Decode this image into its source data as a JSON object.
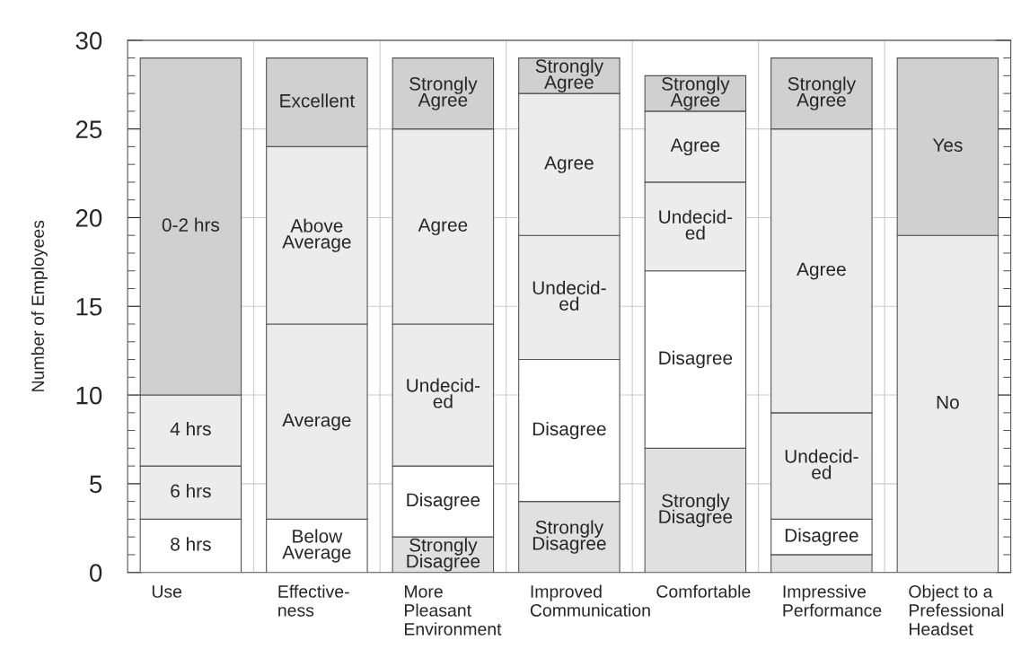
{
  "chart_data": {
    "type": "bar",
    "stacked": true,
    "ylabel": "Number of Employees",
    "categories": [
      "Use",
      "Effective-\nness",
      "More\nPleasant\nEnvironment",
      "Improved\nCommunication",
      "Comfortable",
      "Impressive\nPerformance",
      "Object to a\nPrefessional\nHeadset"
    ],
    "series": [
      {
        "name": "8 hrs",
        "color": "#ffffff",
        "values": [
          3,
          null,
          null,
          null,
          null,
          null,
          null
        ]
      },
      {
        "name": "Below\nAverage",
        "color": "#ffffff",
        "values": [
          null,
          3,
          null,
          null,
          null,
          null,
          null
        ]
      },
      {
        "name": "Strongly\nDisagree",
        "color": "#e0e0e0",
        "values": [
          null,
          null,
          2,
          4,
          7,
          null,
          null
        ]
      },
      {
        "color": "#e0e0e0",
        "values": [
          null,
          null,
          null,
          null,
          null,
          1,
          null
        ]
      },
      {
        "name": "No",
        "color": "#ececec",
        "values": [
          null,
          null,
          null,
          null,
          null,
          null,
          19
        ]
      },
      {
        "name": "6 hrs",
        "color": "#ececec",
        "values": [
          3,
          null,
          null,
          null,
          null,
          null,
          null
        ]
      },
      {
        "name": "Average",
        "color": "#ececec",
        "values": [
          null,
          11,
          null,
          null,
          null,
          null,
          null
        ]
      },
      {
        "name": "Disagree",
        "color": "#ffffff",
        "values": [
          null,
          null,
          4,
          8,
          10,
          2,
          null
        ]
      },
      {
        "name": "Yes",
        "color": "#d0d0d0",
        "values": [
          null,
          null,
          null,
          null,
          null,
          null,
          10
        ]
      },
      {
        "name": "4 hrs",
        "color": "#ececec",
        "values": [
          4,
          null,
          null,
          null,
          null,
          null,
          null
        ]
      },
      {
        "name": "Above\nAverage",
        "color": "#ececec",
        "values": [
          null,
          10,
          null,
          null,
          null,
          null,
          null
        ]
      },
      {
        "name": "Undecid-\ned",
        "color": "#ececec",
        "values": [
          null,
          null,
          8,
          7,
          5,
          6,
          null
        ]
      },
      {
        "name": "0-2 hrs",
        "color": "#d0d0d0",
        "values": [
          19,
          null,
          null,
          null,
          null,
          null,
          null
        ]
      },
      {
        "name": "Excellent",
        "color": "#d0d0d0",
        "values": [
          null,
          5,
          null,
          null,
          null,
          null,
          null
        ]
      },
      {
        "name": "Agree",
        "color": "#ececec",
        "values": [
          null,
          null,
          11,
          8,
          4,
          16,
          null
        ]
      },
      {
        "name": "Strongly\nAgree",
        "color": "#d0d0d0",
        "values": [
          null,
          null,
          4,
          2,
          2,
          4,
          null
        ]
      }
    ],
    "ylim": [
      0,
      30
    ],
    "yticks": [
      0,
      5,
      10,
      15,
      20,
      25,
      30
    ],
    "grid": true
  }
}
